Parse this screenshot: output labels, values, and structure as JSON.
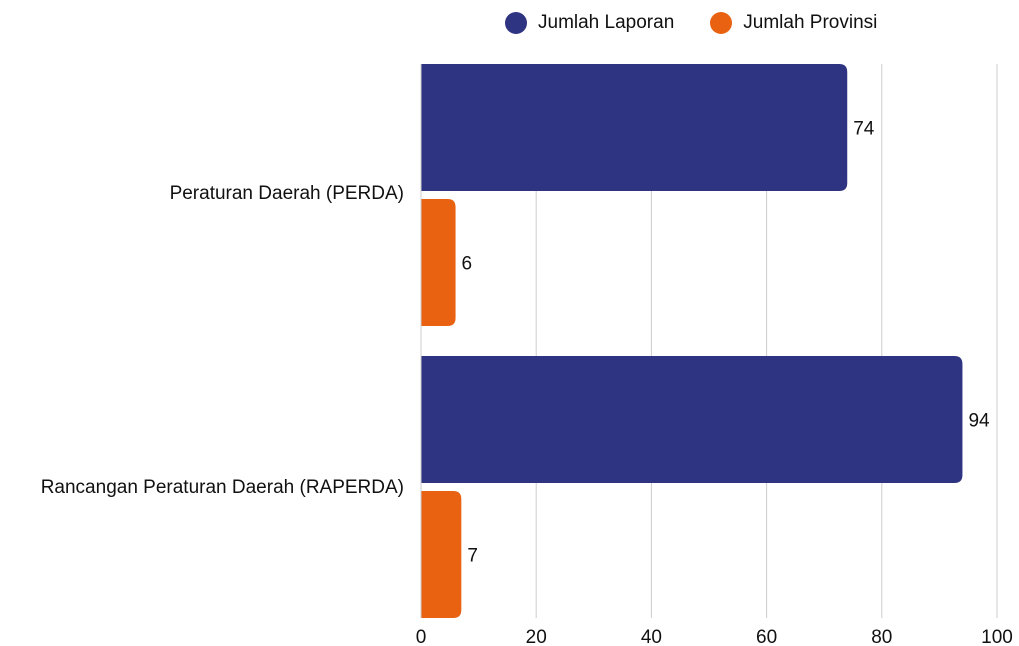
{
  "colors": {
    "laporan": "#2e3382",
    "provinsi": "#e86212",
    "grid": "#cccccc"
  },
  "legend": {
    "laporan_label": "Jumlah Laporan",
    "provinsi_label": "Jumlah Provinsi"
  },
  "categories_text": {
    "perda": "Peraturan Daerah (PERDA)",
    "raperda": "Rancangan Peraturan Daerah (RAPERDA)"
  },
  "chart_data": {
    "type": "bar",
    "orientation": "horizontal",
    "categories": [
      "Peraturan Daerah (PERDA)",
      "Rancangan Peraturan Daerah (RAPERDA)"
    ],
    "series": [
      {
        "name": "Jumlah Laporan",
        "values": [
          74,
          94
        ]
      },
      {
        "name": "Jumlah Provinsi",
        "values": [
          6,
          7
        ]
      }
    ],
    "xlim": [
      0,
      100
    ],
    "xticks": [
      0,
      20,
      40,
      60,
      80,
      100
    ],
    "grid": true,
    "legend_position": "top"
  }
}
